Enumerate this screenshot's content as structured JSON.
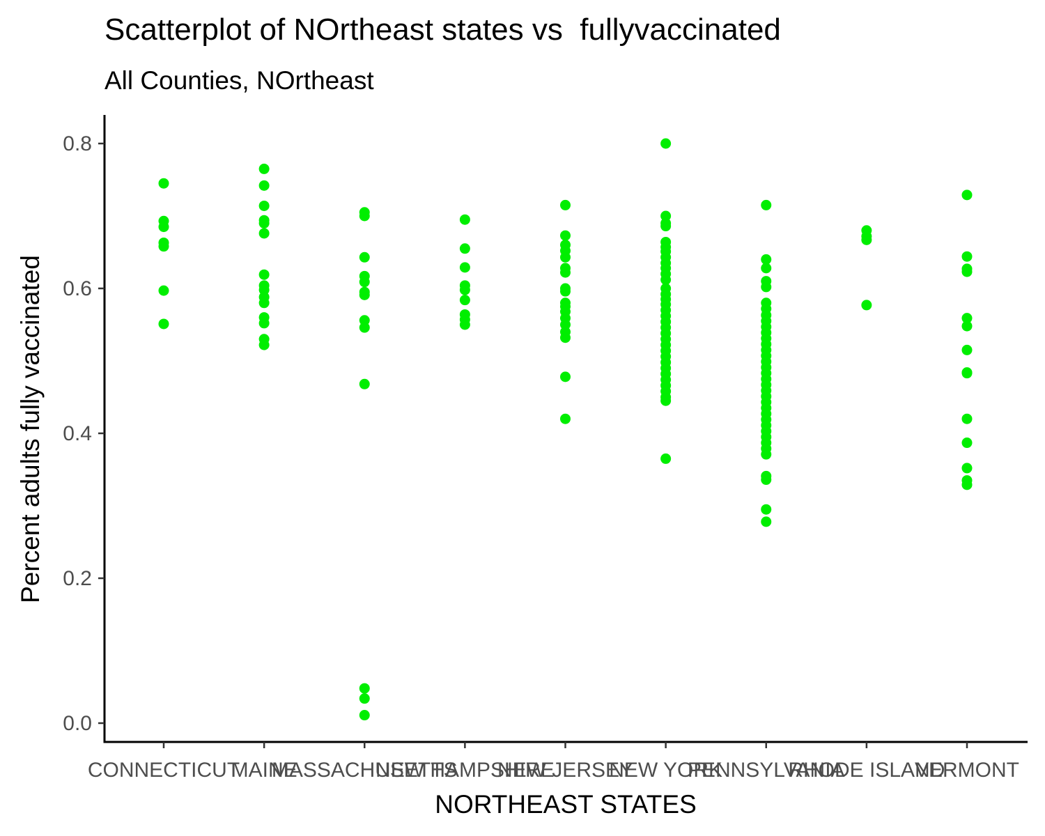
{
  "chart_data": {
    "type": "scatter",
    "title": "Scatterplot of NOrtheast states vs  fullyvaccinated",
    "subtitle": "All Counties, NOrtheast",
    "xlabel": "NORTHEAST STATES",
    "ylabel": "Percent adults fully vaccinated",
    "ylim": [
      -0.03,
      0.84
    ],
    "yticks": [
      0.0,
      0.2,
      0.4,
      0.6,
      0.8
    ],
    "ytick_labels": [
      "0.0",
      "0.2",
      "0.4",
      "0.6",
      "0.8"
    ],
    "grid": false,
    "point_color": "#00EE00",
    "categories": [
      "CONNECTICUT",
      "MAINE",
      "MASSACHUSETTS",
      "NEW HAMPSHIRE",
      "NEW JERSEY",
      "NEW YORK",
      "PENNSYLVANIA",
      "RHODE ISLAND",
      "VERMONT"
    ],
    "series": [
      {
        "values": [
          {
            "category": "CONNECTICUT",
            "y": [
              0.745,
              0.693,
              0.685,
              0.663,
              0.658,
              0.597,
              0.551
            ]
          },
          {
            "category": "MAINE",
            "y": [
              0.765,
              0.742,
              0.714,
              0.694,
              0.69,
              0.676,
              0.619,
              0.604,
              0.598,
              0.588,
              0.58,
              0.56,
              0.552,
              0.53,
              0.522
            ]
          },
          {
            "category": "MASSACHUSETTS",
            "y": [
              0.705,
              0.7,
              0.643,
              0.617,
              0.609,
              0.595,
              0.591,
              0.556,
              0.546,
              0.468,
              0.048,
              0.034,
              0.011
            ]
          },
          {
            "category": "NEW HAMPSHIRE",
            "y": [
              0.695,
              0.655,
              0.629,
              0.604,
              0.598,
              0.584,
              0.564,
              0.557,
              0.55
            ]
          },
          {
            "category": "NEW JERSEY",
            "y": [
              0.715,
              0.673,
              0.66,
              0.652,
              0.643,
              0.628,
              0.622,
              0.6,
              0.596,
              0.58,
              0.575,
              0.568,
              0.559,
              0.55,
              0.54,
              0.532,
              0.478,
              0.42
            ]
          },
          {
            "category": "NEW YORK",
            "y": [
              0.8,
              0.7,
              0.69,
              0.686,
              0.664,
              0.657,
              0.651,
              0.643,
              0.635,
              0.628,
              0.62,
              0.612,
              0.6,
              0.592,
              0.585,
              0.578,
              0.57,
              0.562,
              0.554,
              0.546,
              0.538,
              0.53,
              0.522,
              0.514,
              0.506,
              0.498,
              0.49,
              0.482,
              0.474,
              0.466,
              0.458,
              0.45,
              0.445,
              0.365
            ]
          },
          {
            "category": "PENNSYLVANIA",
            "y": [
              0.715,
              0.64,
              0.628,
              0.61,
              0.602,
              0.58,
              0.572,
              0.563,
              0.555,
              0.547,
              0.539,
              0.531,
              0.523,
              0.515,
              0.507,
              0.499,
              0.491,
              0.483,
              0.475,
              0.467,
              0.459,
              0.451,
              0.443,
              0.435,
              0.427,
              0.419,
              0.411,
              0.403,
              0.395,
              0.387,
              0.379,
              0.371,
              0.341,
              0.336,
              0.295,
              0.278
            ]
          },
          {
            "category": "RHODE ISLAND",
            "y": [
              0.68,
              0.672,
              0.667,
              0.577
            ]
          },
          {
            "category": "VERMONT",
            "y": [
              0.729,
              0.644,
              0.627,
              0.623,
              0.559,
              0.548,
              0.515,
              0.484,
              0.483,
              0.42,
              0.387,
              0.352,
              0.335,
              0.329
            ]
          }
        ]
      }
    ]
  }
}
